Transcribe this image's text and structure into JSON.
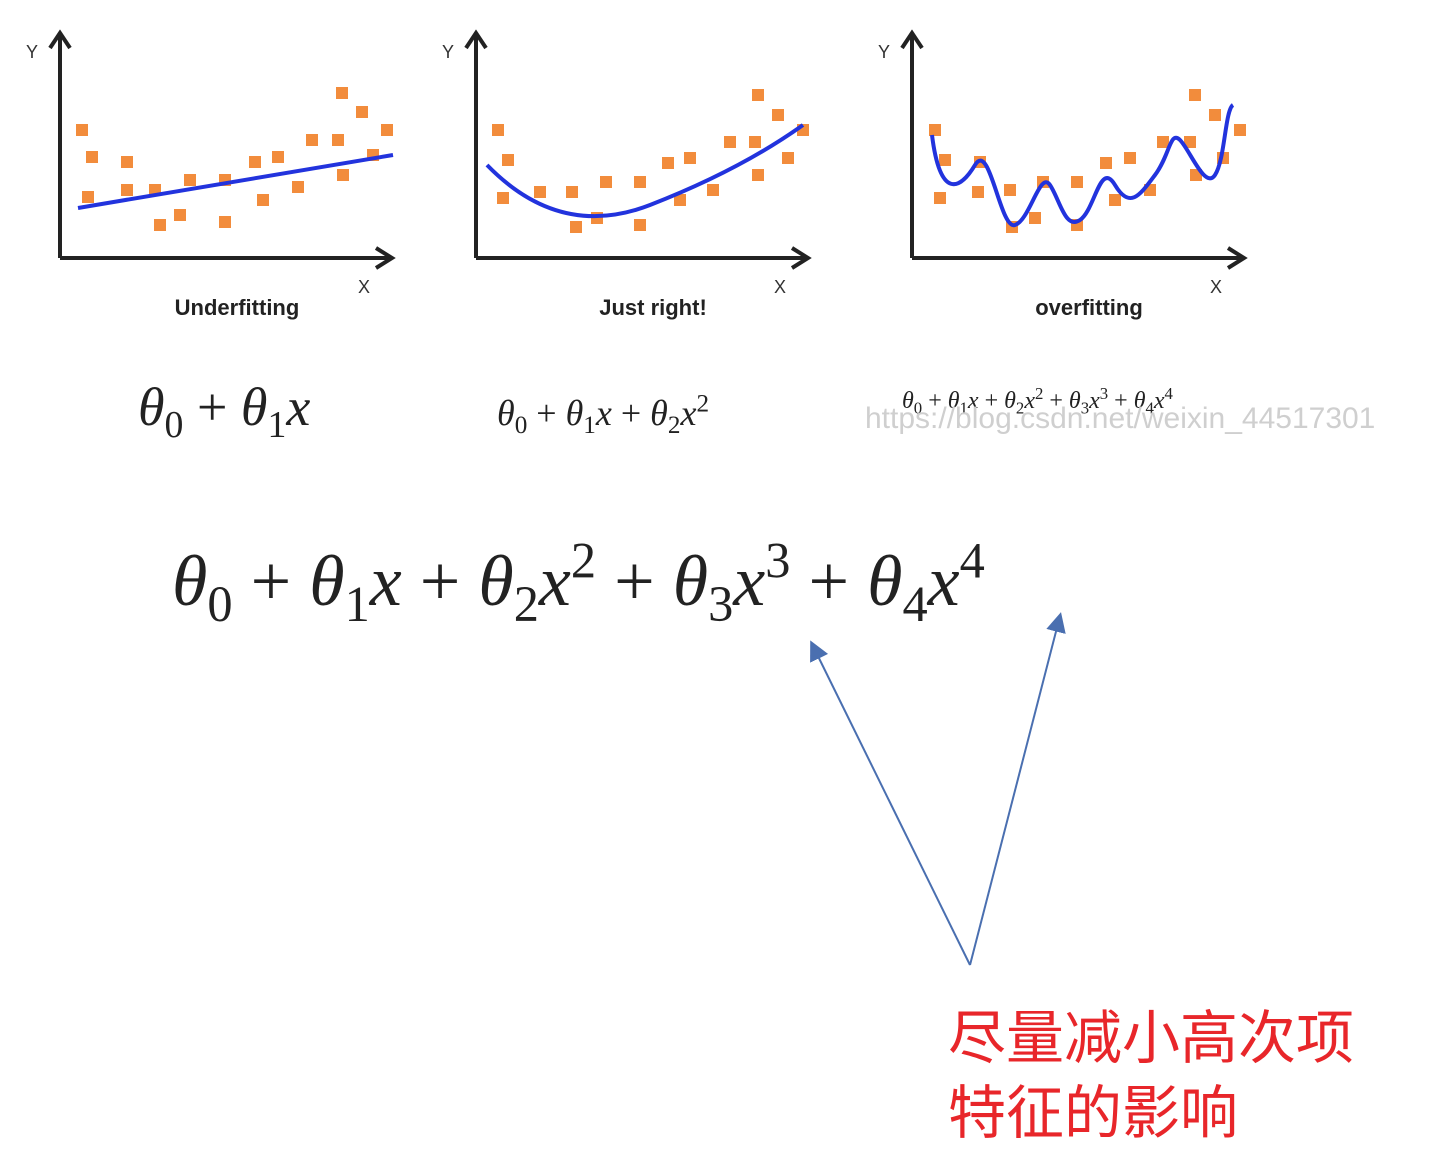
{
  "panels": [
    {
      "y_label": "Y",
      "x_label": "X",
      "caption": "Underfitting",
      "formula": {
        "op": "+",
        "terms": [
          {
            "sym": "θ",
            "sub": "0"
          },
          {
            "sym": "θ",
            "sub": "1",
            "var": "x"
          }
        ]
      }
    },
    {
      "y_label": "Y",
      "x_label": "X",
      "caption": "Just right!",
      "formula": {
        "op": "+",
        "terms": [
          {
            "sym": "θ",
            "sub": "0"
          },
          {
            "sym": "θ",
            "sub": "1",
            "var": "x"
          },
          {
            "sym": "θ",
            "sub": "2",
            "var": "x",
            "sup": "2"
          }
        ]
      }
    },
    {
      "y_label": "Y",
      "x_label": "X",
      "caption": "overfitting",
      "formula": {
        "op": "+",
        "terms": [
          {
            "sym": "θ",
            "sub": "0"
          },
          {
            "sym": "θ",
            "sub": "1",
            "var": "x"
          },
          {
            "sym": "θ",
            "sub": "2",
            "var": "x",
            "sup": "2"
          },
          {
            "sym": "θ",
            "sub": "3",
            "var": "x",
            "sup": "3"
          },
          {
            "sym": "θ",
            "sub": "4",
            "var": "x",
            "sup": "4"
          }
        ]
      }
    }
  ],
  "watermark": "https://blog.csdn.net/weixin_44517301",
  "main_formula": {
    "op": "+",
    "terms": [
      {
        "sym": "θ",
        "sub": "0"
      },
      {
        "sym": "θ",
        "sub": "1",
        "var": "x"
      },
      {
        "sym": "θ",
        "sub": "2",
        "var": "x",
        "sup": "2"
      },
      {
        "sym": "θ",
        "sub": "3",
        "var": "x",
        "sup": "3"
      },
      {
        "sym": "θ",
        "sub": "4",
        "var": "x",
        "sup": "4"
      }
    ]
  },
  "annotation": {
    "lines": [
      "尽量减小高次项",
      "特征的影响"
    ]
  }
}
